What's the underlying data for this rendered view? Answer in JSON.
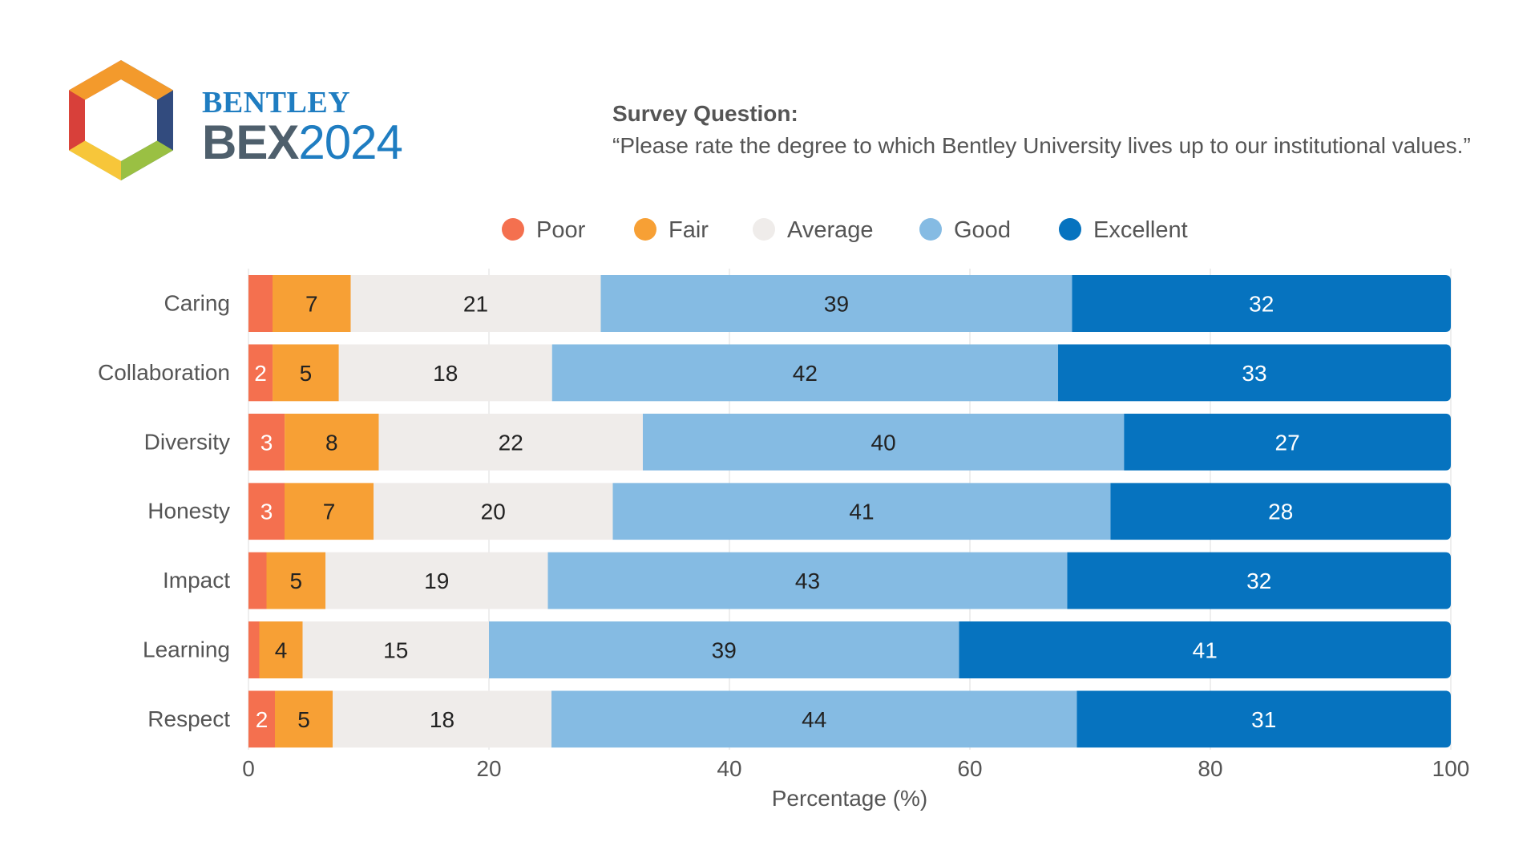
{
  "brand": {
    "top": "BENTLEY",
    "bex": "BEX",
    "year": "2024"
  },
  "survey": {
    "title": "Survey Question:",
    "text": "“Please rate the degree to which Bentley University lives up to our institutional values.”"
  },
  "colors": {
    "poor": "#f4704f",
    "fair": "#f7a035",
    "average": "#efecea",
    "good": "#85bbe3",
    "excellent": "#0673bf",
    "axis_text": "#555555",
    "grid": "#dddddd"
  },
  "chart_data": {
    "type": "bar",
    "orientation": "horizontal",
    "stacked": true,
    "categories": [
      "Caring",
      "Collaboration",
      "Diversity",
      "Honesty",
      "Impact",
      "Learning",
      "Respect"
    ],
    "series": [
      {
        "name": "Poor",
        "values": [
          2,
          2,
          3,
          3,
          1.5,
          0.9,
          2.2
        ],
        "labels": [
          "",
          "2",
          "3",
          "3",
          "",
          "",
          "2"
        ]
      },
      {
        "name": "Fair",
        "values": [
          6.5,
          5.5,
          7.8,
          7.4,
          4.9,
          3.6,
          4.8
        ],
        "labels": [
          "7",
          "5",
          "8",
          "7",
          "5",
          "4",
          "5"
        ]
      },
      {
        "name": "Average",
        "values": [
          20.8,
          17.7,
          21.9,
          19.9,
          18.5,
          15.5,
          18.2
        ],
        "labels": [
          "21",
          "18",
          "22",
          "20",
          "19",
          "15",
          "18"
        ]
      },
      {
        "name": "Good",
        "values": [
          39.2,
          42,
          39.9,
          41.4,
          43.2,
          39.1,
          43.7
        ],
        "labels": [
          "39",
          "42",
          "40",
          "41",
          "43",
          "39",
          "44"
        ]
      },
      {
        "name": "Excellent",
        "values": [
          31.5,
          32.6,
          27.1,
          28.3,
          31.9,
          40.9,
          31.1
        ],
        "labels": [
          "32",
          "33",
          "27",
          "28",
          "32",
          "41",
          "31"
        ]
      }
    ],
    "xlabel": "Percentage (%)",
    "xlim": [
      0,
      100
    ],
    "xticks": [
      0,
      20,
      40,
      60,
      80,
      100
    ],
    "grid": true,
    "legend_position": "top"
  }
}
